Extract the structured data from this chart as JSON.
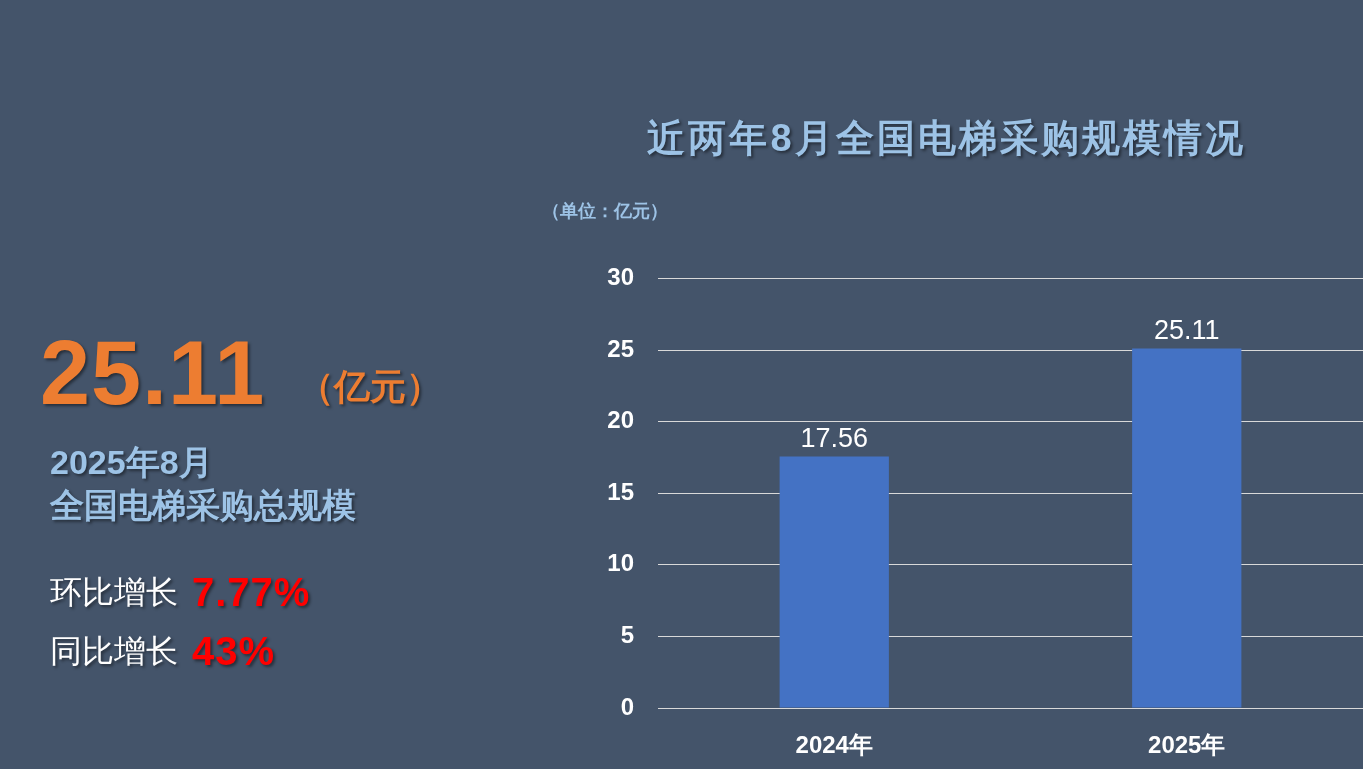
{
  "chart_data": [
    {
      "type": "other",
      "annotations": [
        "25.11",
        "（亿元）",
        "2025年8月",
        "全国电梯采购总规模",
        "环比增长",
        "7.77%",
        "同比增长",
        "43%"
      ]
    },
    {
      "type": "bar",
      "title": "近两年8月全国电梯采购规模情况",
      "ylabel": "（单位：亿元）",
      "categories": [
        "2024年",
        "2025年"
      ],
      "values": [
        17.56,
        25.11
      ],
      "color": "#4472c4",
      "ylim": [
        0,
        30
      ],
      "yticks": [
        0,
        5,
        10,
        15,
        20,
        25,
        30
      ],
      "grid": "y",
      "data_labels": true
    }
  ]
}
